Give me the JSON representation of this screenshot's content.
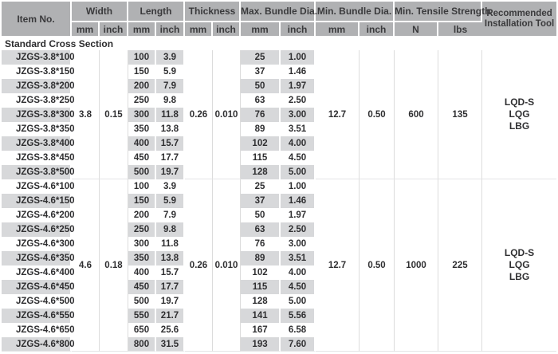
{
  "header": {
    "item_no": "Item No.",
    "groups": [
      {
        "label": "Width",
        "sub": [
          "mm",
          "inch"
        ]
      },
      {
        "label": "Length",
        "sub": [
          "mm",
          "inch"
        ]
      },
      {
        "label": "Thickness",
        "sub": [
          "mm",
          "inch"
        ]
      },
      {
        "label": "Max. Bundle Dia.",
        "sub": [
          "mm",
          "inch"
        ]
      },
      {
        "label": "Min. Bundle Dia.",
        "sub": [
          "mm",
          "inch"
        ]
      },
      {
        "label": "Min. Tensile Strength",
        "sub": [
          "N",
          "lbs"
        ]
      }
    ],
    "tool_line1": "Recommended",
    "tool_line2": "Installation Tool"
  },
  "section_title": "Standard Cross Section",
  "groups": [
    {
      "width_mm": "3.8",
      "width_inch": "0.15",
      "thickness_mm": "0.26",
      "thickness_inch": "0.010",
      "min_bundle_mm": "12.7",
      "min_bundle_inch": "0.50",
      "tensile_n": "600",
      "tensile_lbs": "135",
      "tools": [
        "LQD-S",
        "LQG",
        "LBG"
      ],
      "rows": [
        {
          "item": "JZGS-3.8*100",
          "length_mm": "100",
          "length_inch": "3.9",
          "max_bundle_mm": "25",
          "max_bundle_inch": "1.00"
        },
        {
          "item": "JZGS-3.8*150",
          "length_mm": "150",
          "length_inch": "5.9",
          "max_bundle_mm": "37",
          "max_bundle_inch": "1.46"
        },
        {
          "item": "JZGS-3.8*200",
          "length_mm": "200",
          "length_inch": "7.9",
          "max_bundle_mm": "50",
          "max_bundle_inch": "1.97"
        },
        {
          "item": "JZGS-3.8*250",
          "length_mm": "250",
          "length_inch": "9.8",
          "max_bundle_mm": "63",
          "max_bundle_inch": "2.50"
        },
        {
          "item": "JZGS-3.8*300",
          "length_mm": "300",
          "length_inch": "11.8",
          "max_bundle_mm": "76",
          "max_bundle_inch": "3.00"
        },
        {
          "item": "JZGS-3.8*350",
          "length_mm": "350",
          "length_inch": "13.8",
          "max_bundle_mm": "89",
          "max_bundle_inch": "3.51"
        },
        {
          "item": "JZGS-3.8*400",
          "length_mm": "400",
          "length_inch": "15.7",
          "max_bundle_mm": "102",
          "max_bundle_inch": "4.00"
        },
        {
          "item": "JZGS-3.8*450",
          "length_mm": "450",
          "length_inch": "17.7",
          "max_bundle_mm": "115",
          "max_bundle_inch": "4.50"
        },
        {
          "item": "JZGS-3.8*500",
          "length_mm": "500",
          "length_inch": "19.7",
          "max_bundle_mm": "128",
          "max_bundle_inch": "5.00"
        }
      ]
    },
    {
      "width_mm": "4.6",
      "width_inch": "0.18",
      "thickness_mm": "0.26",
      "thickness_inch": "0.010",
      "min_bundle_mm": "12.7",
      "min_bundle_inch": "0.50",
      "tensile_n": "1000",
      "tensile_lbs": "225",
      "tools": [
        "LQD-S",
        "LQG",
        "LBG"
      ],
      "rows": [
        {
          "item": "JZGS-4.6*100",
          "length_mm": "100",
          "length_inch": "3.9",
          "max_bundle_mm": "25",
          "max_bundle_inch": "1.00"
        },
        {
          "item": "JZGS-4.6*150",
          "length_mm": "150",
          "length_inch": "5.9",
          "max_bundle_mm": "37",
          "max_bundle_inch": "1.46"
        },
        {
          "item": "JZGS-4.6*200",
          "length_mm": "200",
          "length_inch": "7.9",
          "max_bundle_mm": "50",
          "max_bundle_inch": "1.97"
        },
        {
          "item": "JZGS-4.6*250",
          "length_mm": "250",
          "length_inch": "9.8",
          "max_bundle_mm": "63",
          "max_bundle_inch": "2.50"
        },
        {
          "item": "JZGS-4.6*300",
          "length_mm": "300",
          "length_inch": "11.8",
          "max_bundle_mm": "76",
          "max_bundle_inch": "3.00"
        },
        {
          "item": "JZGS-4.6*350",
          "length_mm": "350",
          "length_inch": "13.8",
          "max_bundle_mm": "89",
          "max_bundle_inch": "3.51"
        },
        {
          "item": "JZGS-4.6*400",
          "length_mm": "400",
          "length_inch": "15.7",
          "max_bundle_mm": "102",
          "max_bundle_inch": "4.00"
        },
        {
          "item": "JZGS-4.6*450",
          "length_mm": "450",
          "length_inch": "17.7",
          "max_bundle_mm": "115",
          "max_bundle_inch": "4.50"
        },
        {
          "item": "JZGS-4.6*500",
          "length_mm": "500",
          "length_inch": "19.7",
          "max_bundle_mm": "128",
          "max_bundle_inch": "5.00"
        },
        {
          "item": "JZGS-4.6*550",
          "length_mm": "550",
          "length_inch": "21.7",
          "max_bundle_mm": "141",
          "max_bundle_inch": "5.56"
        },
        {
          "item": "JZGS-4.6*650",
          "length_mm": "650",
          "length_inch": "25.6",
          "max_bundle_mm": "167",
          "max_bundle_inch": "6.58"
        },
        {
          "item": "JZGS-4.6*800",
          "length_mm": "800",
          "length_inch": "31.5",
          "max_bundle_mm": "193",
          "max_bundle_inch": "7.60"
        }
      ]
    }
  ],
  "colors": {
    "header_bg": "#b0b1b3",
    "stripe_bg": "#d7d8da",
    "text": "#2f2f31",
    "grid_line": "#dcdcdc",
    "white": "#ffffff"
  }
}
